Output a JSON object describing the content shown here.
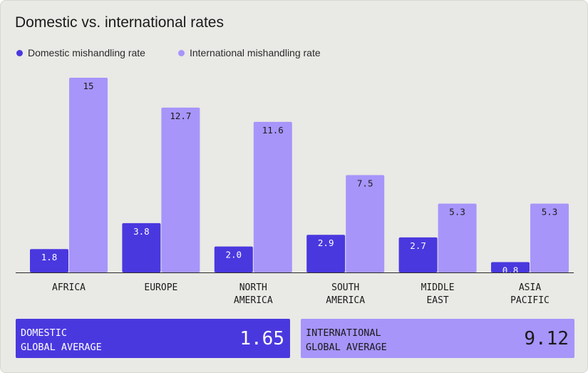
{
  "title": "Domestic vs. international rates",
  "colors": {
    "domestic": "#4a38df",
    "international": "#a795fa",
    "baseline": "#2a2a2a"
  },
  "legend": [
    {
      "name": "Domestic mishandling rate",
      "color": "#4a38df"
    },
    {
      "name": "International mishandling rate",
      "color": "#a795fa"
    }
  ],
  "chart_data": {
    "type": "bar",
    "title": "Domestic vs. international rates",
    "xlabel": "",
    "ylabel": "",
    "ylim": [
      0,
      15
    ],
    "grid": false,
    "legend_position": "top-left",
    "categories": [
      [
        "AFRICA"
      ],
      [
        "EUROPE"
      ],
      [
        "NORTH",
        "AMERICA"
      ],
      [
        "SOUTH",
        "AMERICA"
      ],
      [
        "MIDDLE",
        "EAST"
      ],
      [
        "ASIA",
        "PACIFIC"
      ]
    ],
    "series": [
      {
        "name": "Domestic mishandling rate",
        "values": [
          1.8,
          3.8,
          2.0,
          2.9,
          2.7,
          0.8
        ],
        "labels": [
          "1.8",
          "3.8",
          "2.0",
          "2.9",
          "2.7",
          "0.8"
        ]
      },
      {
        "name": "International mishandling rate",
        "values": [
          15,
          12.7,
          11.6,
          7.5,
          5.3,
          5.3
        ],
        "labels": [
          "15",
          "12.7",
          "11.6",
          "7.5",
          "5.3",
          "5.3"
        ]
      }
    ]
  },
  "averages": {
    "domestic": {
      "label": "DOMESTIC\nGLOBAL AVERAGE",
      "value": "1.65"
    },
    "international": {
      "label": "INTERNATIONAL\nGLOBAL AVERAGE",
      "value": "9.12"
    }
  }
}
